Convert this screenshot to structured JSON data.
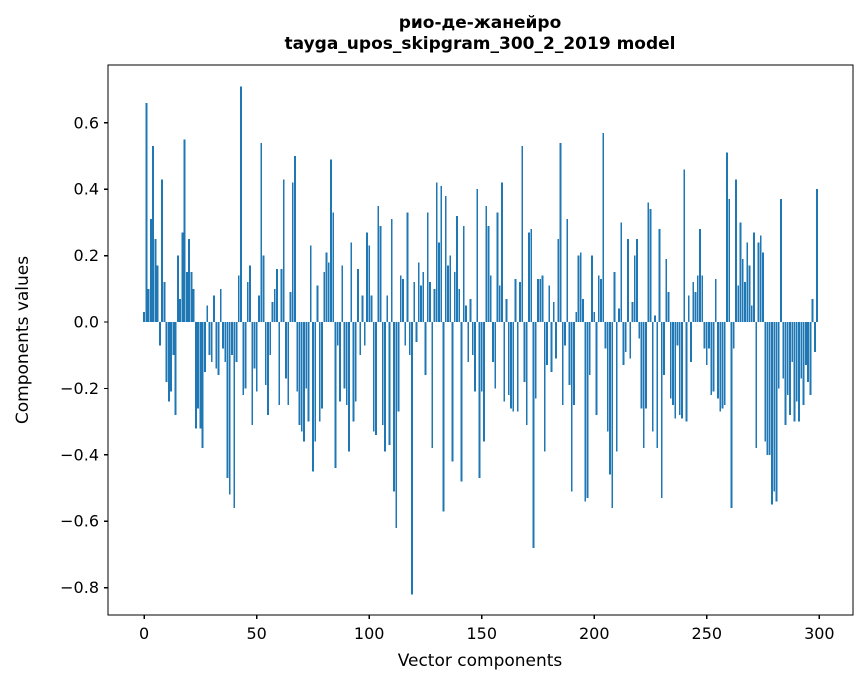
{
  "title": {
    "line1": "рио-де-жанейро",
    "line2": "tayga_upos_skipgram_300_2_2019 model"
  },
  "axes": {
    "xlabel": "Vector components",
    "ylabel": "Components values"
  },
  "chart_data": {
    "type": "bar",
    "title": "рио-де-жанейро\ntayga_upos_skipgram_300_2_2019 model",
    "xlabel": "Vector components",
    "ylabel": "Components values",
    "bar_color": "#1f77b4",
    "background_color": "#ffffff",
    "spine_color": "#000000",
    "grid": false,
    "legend": null,
    "xlim": [
      -16.05,
      314.95
    ],
    "ylim": [
      -0.8825,
      0.7742
    ],
    "bar_width": 0.8,
    "x_start": 0,
    "x_ticks": {
      "values": [
        0,
        50,
        100,
        150,
        200,
        250,
        300
      ],
      "labels": [
        "0",
        "50",
        "100",
        "150",
        "200",
        "250",
        "300"
      ]
    },
    "y_ticks": {
      "values": [
        0.6,
        0.4,
        0.2,
        0.0,
        -0.2,
        -0.4,
        -0.6,
        -0.8
      ],
      "labels": [
        "0.6",
        "0.4",
        "0.2",
        "0.0",
        "−0.2",
        "−0.4",
        "−0.6",
        "−0.8"
      ]
    },
    "values": [
      0.03,
      0.66,
      0.1,
      0.31,
      0.53,
      0.25,
      0.17,
      -0.07,
      0.43,
      0.12,
      -0.18,
      -0.24,
      -0.21,
      -0.1,
      -0.28,
      0.2,
      0.07,
      0.27,
      0.55,
      0.15,
      0.25,
      0.15,
      0.1,
      -0.32,
      -0.26,
      -0.32,
      -0.38,
      -0.15,
      0.05,
      -0.1,
      -0.12,
      0.08,
      -0.14,
      -0.16,
      0.1,
      -0.08,
      -0.12,
      -0.47,
      -0.52,
      -0.1,
      -0.56,
      -0.12,
      0.14,
      0.71,
      -0.22,
      -0.2,
      0.12,
      0.17,
      -0.31,
      -0.14,
      -0.21,
      0.08,
      0.54,
      0.2,
      -0.19,
      -0.28,
      -0.1,
      0.06,
      0.1,
      0.16,
      -0.25,
      0.16,
      0.43,
      -0.17,
      -0.25,
      0.09,
      0.42,
      0.5,
      -0.21,
      -0.31,
      -0.33,
      -0.36,
      -0.2,
      -0.3,
      0.23,
      -0.45,
      -0.36,
      0.11,
      -0.3,
      -0.26,
      0.15,
      0.21,
      0.18,
      0.49,
      0.33,
      -0.44,
      -0.07,
      -0.24,
      0.17,
      -0.2,
      -0.25,
      -0.39,
      0.24,
      -0.3,
      -0.24,
      0.16,
      -0.1,
      0.08,
      -0.07,
      0.27,
      0.23,
      0.08,
      -0.33,
      -0.34,
      0.35,
      0.29,
      -0.31,
      -0.39,
      0.08,
      -0.37,
      0.31,
      -0.51,
      -0.62,
      -0.27,
      0.14,
      0.13,
      -0.07,
      0.33,
      -0.1,
      -0.82,
      0.12,
      -0.06,
      0.18,
      0.11,
      0.15,
      -0.16,
      0.33,
      0.12,
      -0.38,
      0.1,
      0.42,
      0.24,
      0.41,
      -0.57,
      0.38,
      0.17,
      0.2,
      -0.42,
      0.15,
      0.32,
      0.1,
      -0.48,
      0.29,
      0.05,
      -0.12,
      0.07,
      -0.1,
      -0.21,
      0.4,
      -0.47,
      -0.21,
      -0.36,
      0.35,
      0.29,
      0.14,
      -0.12,
      -0.2,
      0.33,
      0.11,
      0.42,
      -0.24,
      0.07,
      -0.22,
      -0.26,
      -0.27,
      0.13,
      -0.27,
      0.12,
      0.53,
      -0.18,
      -0.31,
      0.27,
      0.28,
      -0.68,
      -0.23,
      0.13,
      0.13,
      0.14,
      -0.39,
      -0.13,
      0.11,
      -0.15,
      0.06,
      -0.11,
      0.25,
      0.54,
      -0.25,
      -0.07,
      0.31,
      -0.19,
      -0.51,
      -0.25,
      0.03,
      0.2,
      0.21,
      0.07,
      -0.54,
      -0.53,
      -0.16,
      0.2,
      0.03,
      -0.28,
      0.14,
      0.13,
      0.57,
      -0.08,
      -0.33,
      -0.46,
      -0.56,
      0.15,
      -0.39,
      0.04,
      0.3,
      -0.13,
      -0.09,
      0.25,
      -0.11,
      0.06,
      0.2,
      0.25,
      -0.05,
      -0.26,
      -0.38,
      -0.26,
      0.36,
      0.34,
      -0.33,
      0.02,
      -0.38,
      0.28,
      -0.53,
      -0.16,
      0.19,
      0.09,
      -0.23,
      -0.25,
      -0.29,
      -0.07,
      -0.28,
      -0.29,
      0.46,
      -0.3,
      0.08,
      -0.12,
      0.12,
      0.09,
      0.14,
      0.28,
      0.14,
      -0.08,
      -0.13,
      -0.08,
      -0.22,
      -0.21,
      0.13,
      -0.23,
      -0.27,
      -0.26,
      -0.25,
      0.51,
      0.37,
      -0.56,
      -0.08,
      0.43,
      0.11,
      0.3,
      0.19,
      0.12,
      0.24,
      0.17,
      0.05,
      0.27,
      -0.38,
      0.24,
      0.26,
      0.21,
      -0.36,
      -0.4,
      -0.4,
      -0.55,
      -0.51,
      -0.54,
      -0.2,
      0.37,
      -0.17,
      -0.31,
      -0.22,
      -0.28,
      -0.12,
      -0.3,
      -0.24,
      -0.3,
      -0.17,
      -0.25,
      -0.13,
      -0.18,
      -0.22,
      0.07,
      -0.09,
      0.4
    ]
  }
}
